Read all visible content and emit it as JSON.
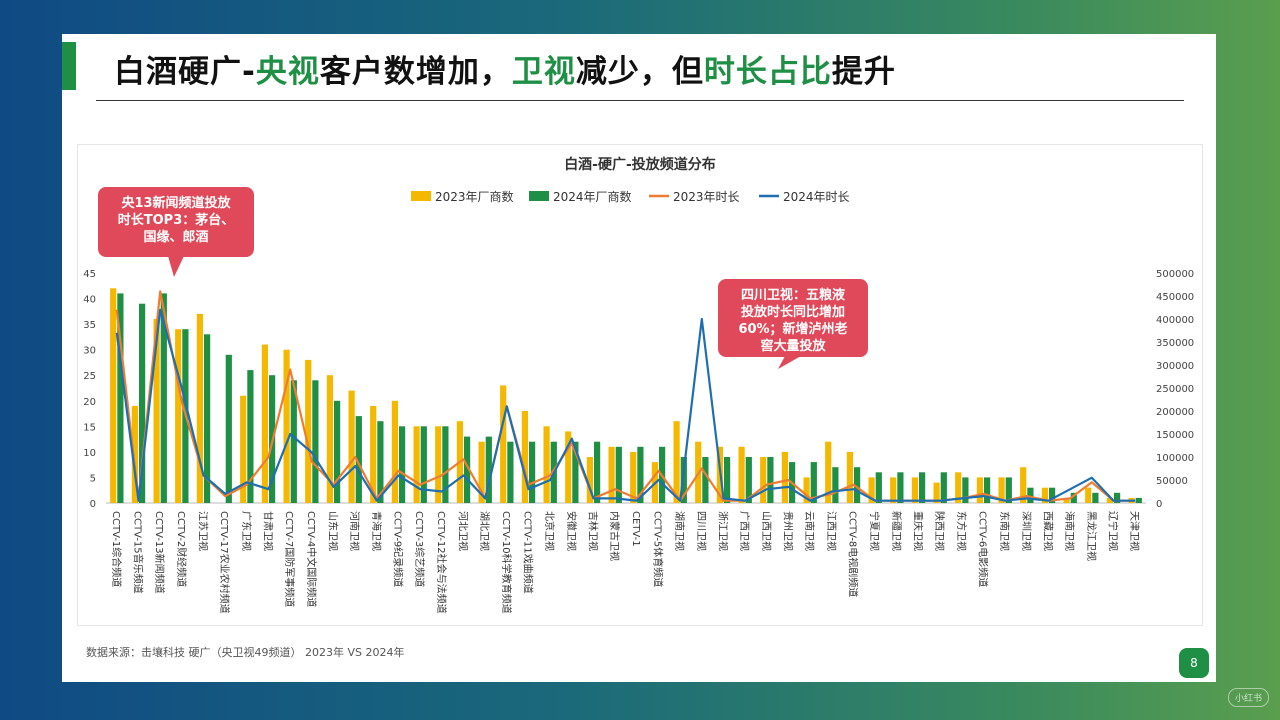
{
  "slide": {
    "title_parts": [
      "白酒硬广-",
      "央视",
      "客户数增加，",
      "卫视",
      "减少，但",
      "时长占比",
      "提升"
    ],
    "source": "数据来源：击壤科技  硬广（央卫视49频道）  2023年 VS 2024年",
    "page_number": "8",
    "watermark": "小红书",
    "accent_color": "#1e8f45"
  },
  "callouts": [
    {
      "lines": [
        "央13新闻频道投放",
        "时长TOP3：茅台、",
        "国缘、郎酒"
      ]
    },
    {
      "lines": [
        "四川卫视：五粮液",
        "投放时长同比增加",
        "60%；新增泸州老",
        "窖大量投放"
      ]
    }
  ],
  "chart_data": {
    "type": "bar",
    "title": "白酒-硬广-投放频道分布",
    "colors": {
      "bar2023": "#f5b800",
      "bar2024": "#1e8f45",
      "line2023": "#ed7d31",
      "line2024": "#1f6fb0"
    },
    "legend_position": "top",
    "y_left": {
      "min": 0,
      "max": 45,
      "ticks": [
        0,
        5,
        10,
        15,
        20,
        25,
        30,
        35,
        40,
        45
      ]
    },
    "y_right": {
      "min": 0,
      "max": 500000,
      "ticks": [
        0,
        50000,
        100000,
        150000,
        200000,
        250000,
        300000,
        350000,
        400000,
        450000,
        500000
      ]
    },
    "categories": [
      "CCTV-1综合频道",
      "CCTV-15音乐频道",
      "CCTV-13新闻频道",
      "CCTV-2财经频道",
      "江苏卫视",
      "CCTV-17农业农村频道",
      "广东卫视",
      "甘肃卫视",
      "CCTV-7国防军事频道",
      "CCTV-4中文国际频道",
      "山东卫视",
      "河南卫视",
      "青海卫视",
      "CCTV-9纪录频道",
      "CCTV-3综艺频道",
      "CCTV-12社会与法频道",
      "河北卫视",
      "湖北卫视",
      "CCTV-10科学教育频道",
      "CCTV-11戏曲频道",
      "北京卫视",
      "安徽卫视",
      "吉林卫视",
      "内蒙古卫视",
      "CETV-1",
      "CCTV-5体育频道",
      "湖南卫视",
      "四川卫视",
      "浙江卫视",
      "广西卫视",
      "山西卫视",
      "贵州卫视",
      "云南卫视",
      "江西卫视",
      "CCTV-8电视剧频道",
      "宁夏卫视",
      "新疆卫视",
      "重庆卫视",
      "陕西卫视",
      "东方卫视",
      "CCTV-6电影频道",
      "东南卫视",
      "深圳卫视",
      "西藏卫视",
      "海南卫视",
      "黑龙江卫视",
      "辽宁卫视",
      "天津卫视"
    ],
    "series": [
      {
        "name": "2023年厂商数",
        "kind": "bar",
        "axis": "left",
        "values": [
          42,
          19,
          36,
          34,
          37,
          0,
          21,
          31,
          30,
          28,
          25,
          22,
          19,
          20,
          15,
          15,
          16,
          12,
          23,
          18,
          15,
          14,
          9,
          11,
          10,
          8,
          16,
          12,
          11,
          11,
          9,
          10,
          5,
          12,
          10,
          5,
          5,
          5,
          4,
          6,
          5,
          5,
          7,
          3,
          1,
          3,
          1,
          1
        ]
      },
      {
        "name": "2024年厂商数",
        "kind": "bar",
        "axis": "left",
        "values": [
          41,
          39,
          41,
          34,
          33,
          29,
          26,
          25,
          24,
          24,
          20,
          17,
          16,
          15,
          15,
          15,
          13,
          13,
          12,
          12,
          12,
          12,
          12,
          11,
          11,
          11,
          9,
          9,
          9,
          9,
          9,
          8,
          8,
          7,
          7,
          6,
          6,
          6,
          6,
          5,
          5,
          5,
          3,
          3,
          2,
          2,
          2,
          1
        ]
      },
      {
        "name": "2023年时长",
        "kind": "line",
        "axis": "right",
        "values": [
          420000,
          10000,
          460000,
          220000,
          60000,
          15000,
          40000,
          100000,
          290000,
          90000,
          40000,
          100000,
          10000,
          70000,
          40000,
          60000,
          95000,
          10000,
          210000,
          40000,
          60000,
          130000,
          10000,
          30000,
          10000,
          70000,
          5000,
          75000,
          5000,
          5000,
          40000,
          50000,
          10000,
          20000,
          40000,
          5000,
          5000,
          5000,
          5000,
          10000,
          20000,
          5000,
          15000,
          5000,
          10000,
          45000,
          5000,
          5000
        ]
      },
      {
        "name": "2024年时长",
        "kind": "line",
        "axis": "right",
        "values": [
          370000,
          5000,
          420000,
          250000,
          60000,
          20000,
          45000,
          30000,
          150000,
          110000,
          35000,
          80000,
          5000,
          60000,
          30000,
          25000,
          60000,
          10000,
          210000,
          30000,
          50000,
          140000,
          10000,
          10000,
          5000,
          50000,
          5000,
          400000,
          10000,
          5000,
          30000,
          35000,
          5000,
          25000,
          30000,
          5000,
          5000,
          5000,
          5000,
          10000,
          15000,
          5000,
          10000,
          5000,
          30000,
          55000,
          5000,
          5000
        ]
      }
    ]
  }
}
